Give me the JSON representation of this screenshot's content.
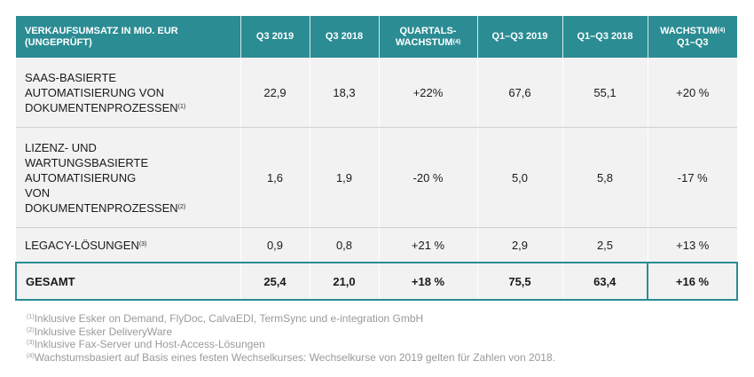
{
  "table": {
    "headers": [
      {
        "lines": [
          "VERKAUFSUMSATZ IN MIO. EUR",
          "(UNGEPRÜFT)"
        ],
        "sup": ""
      },
      {
        "lines": [
          "Q3 2019"
        ],
        "sup": ""
      },
      {
        "lines": [
          "Q3 2018"
        ],
        "sup": ""
      },
      {
        "lines": [
          "QUARTALS-",
          "WACHSTUM"
        ],
        "sup": "(4)"
      },
      {
        "lines": [
          "Q1–Q3 2019"
        ],
        "sup": ""
      },
      {
        "lines": [
          "Q1–Q3 2018"
        ],
        "sup": ""
      },
      {
        "lines": [
          "WACHSTUM",
          "Q1–Q3"
        ],
        "sup": "(4)"
      }
    ],
    "rows": [
      {
        "label_lines": [
          "SAAS-BASIERTE",
          "AUTOMATISIERUNG VON",
          "DOKUMENTENPROZESSEN"
        ],
        "sup": "(1)",
        "values": [
          "22,9",
          "18,3",
          "+22%",
          "67,6",
          "55,1",
          "+20 %"
        ]
      },
      {
        "label_lines": [
          "LIZENZ- UND",
          "WARTUNGSBASIERTE",
          "AUTOMATISIERUNG",
          "VON",
          "DOKUMENTENPROZESSEN"
        ],
        "sup": "(2)",
        "values": [
          "1,6",
          "1,9",
          "-20 %",
          "5,0",
          "5,8",
          "-17 %"
        ]
      },
      {
        "label_lines": [
          "LEGACY-LÖSUNGEN"
        ],
        "sup": "(3)",
        "values": [
          "0,9",
          "0,8",
          "+21 %",
          "2,9",
          "2,5",
          "+13 %"
        ]
      }
    ],
    "total": {
      "label": "GESAMT",
      "values": [
        "25,4",
        "21,0",
        "+18 %",
        "75,5",
        "63,4",
        "+16 %"
      ]
    }
  },
  "footnotes": [
    {
      "mark": "(1)",
      "text": "Inklusive Esker on Demand, FlyDoc, CalvaEDI, TermSync und e-integration GmbH"
    },
    {
      "mark": "(2)",
      "text": "Inklusive Esker DeliveryWare"
    },
    {
      "mark": "(3)",
      "text": "Inklusive Fax-Server und Host-Access-Lösungen"
    },
    {
      "mark": "(4)",
      "text": "Wachstumsbasiert auf Basis eines festen Wechselkurses: Wechselkurse von 2019 gelten für Zahlen von 2018."
    }
  ],
  "colors": {
    "header_bg": "#2b8c93",
    "row_bg": "#f2f2f2",
    "footnote_text": "#9a9a9a"
  }
}
